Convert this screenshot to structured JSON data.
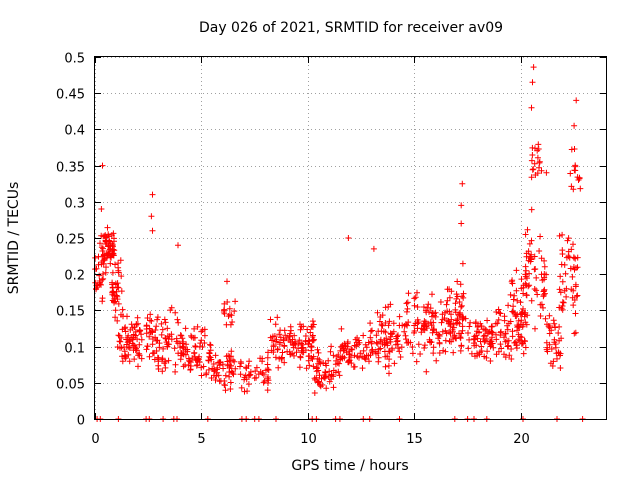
{
  "chart_data": {
    "type": "scatter",
    "title": "Day 026 of 2021, SRMTID for receiver av09",
    "xlabel": "GPS time / hours",
    "ylabel": "SRMTID / TECUs",
    "xlim": [
      0,
      24
    ],
    "ylim": [
      0,
      0.5
    ],
    "xticks": [
      0,
      5,
      10,
      15,
      20
    ],
    "yticks": [
      0,
      0.05,
      0.1,
      0.15,
      0.2,
      0.25,
      0.3,
      0.35,
      0.4,
      0.45,
      0.5
    ],
    "xtick_labels": [
      "0",
      "5",
      "10",
      "15",
      "20"
    ],
    "ytick_labels": [
      "0",
      "0.05",
      "0.1",
      "0.15",
      "0.2",
      "0.25",
      "0.3",
      "0.35",
      "0.4",
      "0.45",
      "0.5"
    ],
    "grid": true,
    "marker": "+",
    "color": "#ff0000",
    "clusters": [
      {
        "x": [
          0.0,
          0.4
        ],
        "y": [
          0.14,
          0.26
        ],
        "n": 25
      },
      {
        "x": [
          0.3,
          0.9
        ],
        "y": [
          0.19,
          0.28
        ],
        "n": 60
      },
      {
        "x": [
          0.8,
          1.3
        ],
        "y": [
          0.1,
          0.25
        ],
        "n": 40
      },
      {
        "x": [
          1.0,
          2.2
        ],
        "y": [
          0.06,
          0.16
        ],
        "n": 70
      },
      {
        "x": [
          2.3,
          3.2
        ],
        "y": [
          0.05,
          0.16
        ],
        "n": 45
      },
      {
        "x": [
          3.2,
          4.2
        ],
        "y": [
          0.05,
          0.17
        ],
        "n": 40
      },
      {
        "x": [
          4.0,
          5.2
        ],
        "y": [
          0.04,
          0.15
        ],
        "n": 60
      },
      {
        "x": [
          5.2,
          6.6
        ],
        "y": [
          0.03,
          0.12
        ],
        "n": 65
      },
      {
        "x": [
          6.0,
          6.6
        ],
        "y": [
          0.1,
          0.19
        ],
        "n": 15
      },
      {
        "x": [
          6.8,
          8.2
        ],
        "y": [
          0.03,
          0.1
        ],
        "n": 45
      },
      {
        "x": [
          8.2,
          10.3
        ],
        "y": [
          0.06,
          0.15
        ],
        "n": 110
      },
      {
        "x": [
          10.3,
          11.5
        ],
        "y": [
          0.03,
          0.11
        ],
        "n": 55
      },
      {
        "x": [
          11.5,
          12.9
        ],
        "y": [
          0.06,
          0.13
        ],
        "n": 60
      },
      {
        "x": [
          12.9,
          14.6
        ],
        "y": [
          0.05,
          0.17
        ],
        "n": 85
      },
      {
        "x": [
          14.6,
          17.3
        ],
        "y": [
          0.06,
          0.19
        ],
        "n": 140
      },
      {
        "x": [
          16.5,
          17.4
        ],
        "y": [
          0.1,
          0.22
        ],
        "n": 25
      },
      {
        "x": [
          17.4,
          18.6
        ],
        "y": [
          0.06,
          0.16
        ],
        "n": 55
      },
      {
        "x": [
          18.6,
          20.3
        ],
        "y": [
          0.07,
          0.18
        ],
        "n": 90
      },
      {
        "x": [
          19.5,
          20.3
        ],
        "y": [
          0.12,
          0.22
        ],
        "n": 25
      },
      {
        "x": [
          20.2,
          21.2
        ],
        "y": [
          0.1,
          0.3
        ],
        "n": 55
      },
      {
        "x": [
          20.5,
          21.0
        ],
        "y": [
          0.3,
          0.4
        ],
        "n": 18
      },
      {
        "x": [
          21.2,
          21.9
        ],
        "y": [
          0.05,
          0.16
        ],
        "n": 35
      },
      {
        "x": [
          21.8,
          22.7
        ],
        "y": [
          0.1,
          0.3
        ],
        "n": 50
      },
      {
        "x": [
          22.3,
          22.8
        ],
        "y": [
          0.28,
          0.4
        ],
        "n": 14
      }
    ],
    "outliers": [
      {
        "x": 0.35,
        "y": 0.35
      },
      {
        "x": 0.3,
        "y": 0.29
      },
      {
        "x": 2.7,
        "y": 0.31
      },
      {
        "x": 2.65,
        "y": 0.28
      },
      {
        "x": 2.7,
        "y": 0.26
      },
      {
        "x": 3.9,
        "y": 0.24
      },
      {
        "x": 6.2,
        "y": 0.19
      },
      {
        "x": 11.9,
        "y": 0.25
      },
      {
        "x": 13.1,
        "y": 0.235
      },
      {
        "x": 17.25,
        "y": 0.325
      },
      {
        "x": 17.2,
        "y": 0.295
      },
      {
        "x": 20.6,
        "y": 0.486
      },
      {
        "x": 20.55,
        "y": 0.465
      },
      {
        "x": 20.5,
        "y": 0.43
      },
      {
        "x": 22.6,
        "y": 0.44
      },
      {
        "x": 22.5,
        "y": 0.405
      },
      {
        "x": 17.2,
        "y": 0.27
      },
      {
        "x": 21.2,
        "y": 0.34
      }
    ],
    "zero_x": [
      0.1,
      0.25,
      1.1,
      2.4,
      2.55,
      3.2,
      3.7,
      3.85,
      5.3,
      6.9,
      7.1,
      7.5,
      7.7,
      8.5,
      10.2,
      10.4,
      11.3,
      11.5,
      12.6,
      12.9,
      14.3,
      16.9,
      17.5,
      17.8,
      18.4,
      20.1,
      21.7,
      22.9
    ]
  }
}
